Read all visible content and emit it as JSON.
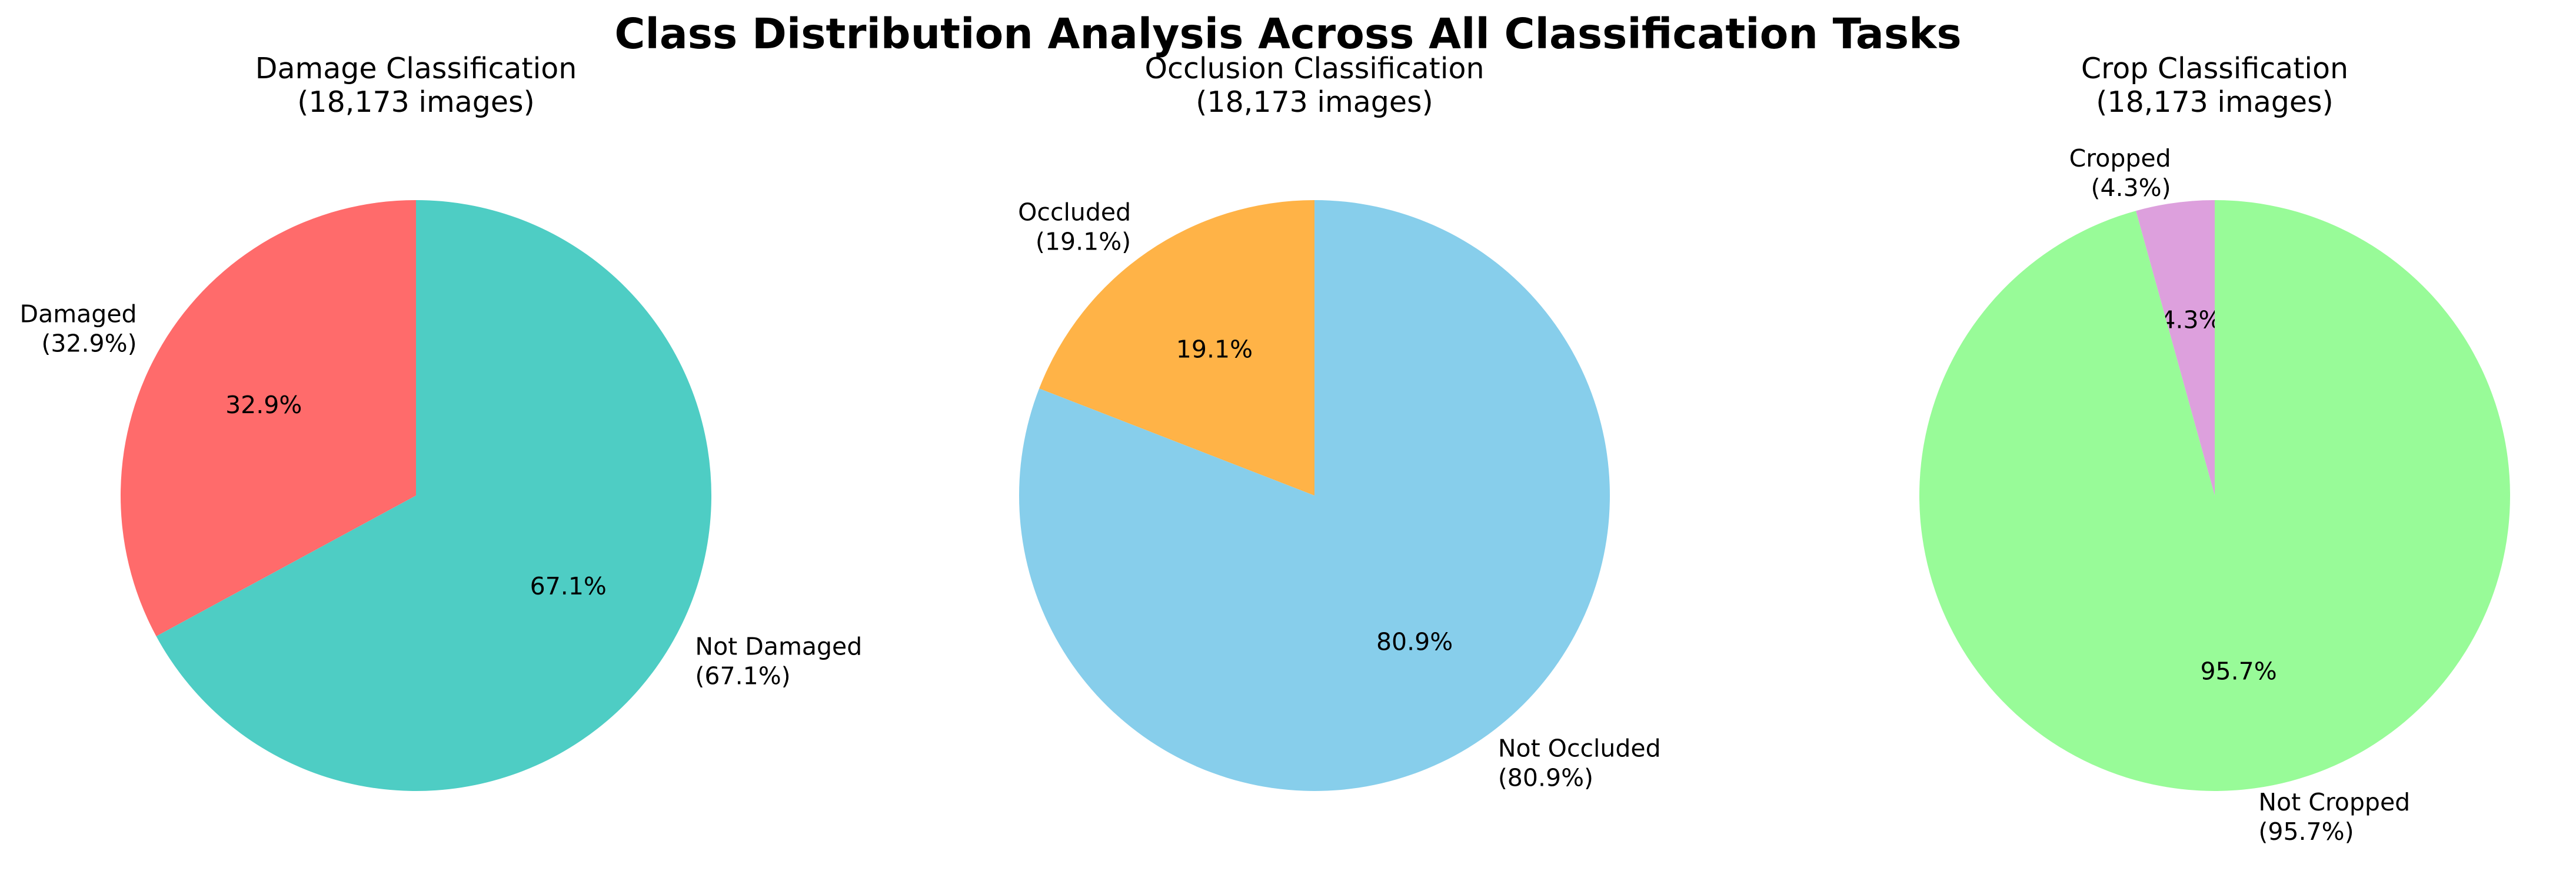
{
  "title": "Class Distribution Analysis Across All Classification Tasks",
  "chart_data": [
    {
      "type": "pie",
      "title": "Damage Classification",
      "subtitle": "(18,173 images)",
      "slices": [
        {
          "label": "Damaged",
          "value": 32.9,
          "label_text": "Damaged",
          "pct_text": "(32.9%)",
          "autopct": "32.9%",
          "color": "#FF6B6B"
        },
        {
          "label": "Not Damaged",
          "value": 67.1,
          "label_text": "Not Damaged",
          "pct_text": "(67.1%)",
          "autopct": "67.1%",
          "color": "#4ECDC4"
        }
      ],
      "start_angle": 90,
      "direction": "counterclockwise"
    },
    {
      "type": "pie",
      "title": "Occlusion Classification",
      "subtitle": "(18,173 images)",
      "slices": [
        {
          "label": "Occluded",
          "value": 19.1,
          "label_text": "Occluded",
          "pct_text": "(19.1%)",
          "autopct": "19.1%",
          "color": "#FFB347"
        },
        {
          "label": "Not Occluded",
          "value": 80.9,
          "label_text": "Not Occluded",
          "pct_text": "(80.9%)",
          "autopct": "80.9%",
          "color": "#87CEEB"
        }
      ],
      "start_angle": 90,
      "direction": "counterclockwise"
    },
    {
      "type": "pie",
      "title": "Crop Classification",
      "subtitle": "(18,173 images)",
      "slices": [
        {
          "label": "Cropped",
          "value": 4.3,
          "label_text": "Cropped",
          "pct_text": "(4.3%)",
          "autopct": "4.3%",
          "color": "#DDA0DD"
        },
        {
          "label": "Not Cropped",
          "value": 95.7,
          "label_text": "Not Cropped",
          "pct_text": "(95.7%)",
          "autopct": "95.7%",
          "color": "#98FB98"
        }
      ],
      "start_angle": 90,
      "direction": "counterclockwise"
    }
  ]
}
